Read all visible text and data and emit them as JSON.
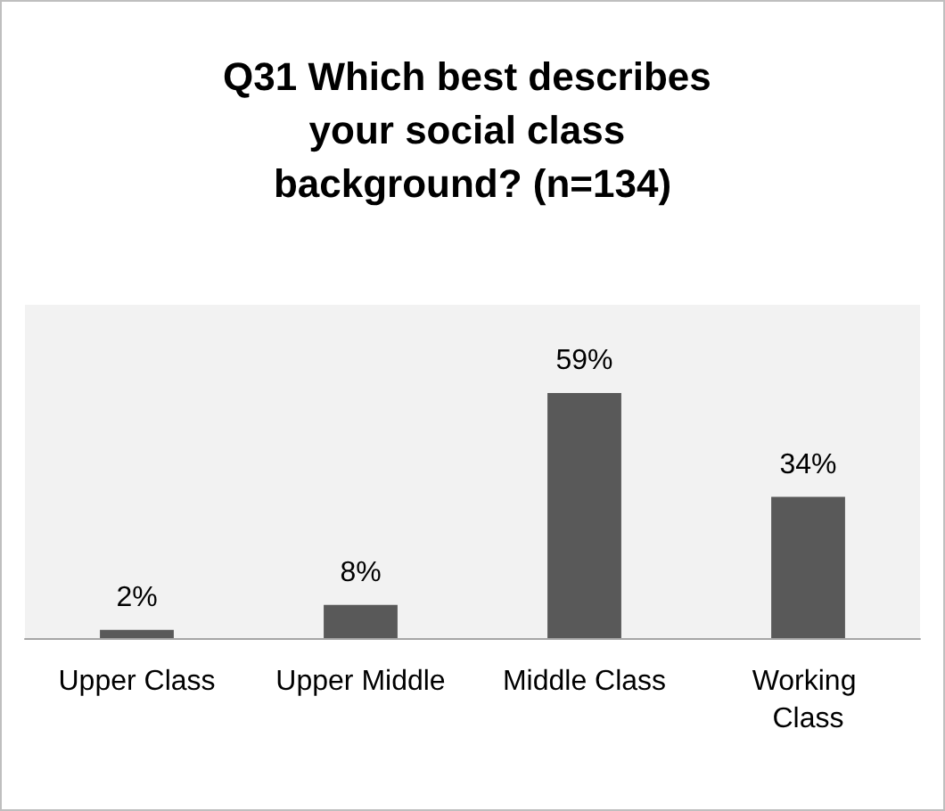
{
  "chart_data": {
    "type": "bar",
    "title": "Q31 Which best describes your social class background? (n=134)",
    "categories": [
      "Upper Class",
      "Upper Middle",
      "Middle Class",
      "Working Class"
    ],
    "values": [
      2,
      8,
      59,
      34
    ],
    "value_labels": [
      "2%",
      "8%",
      "59%",
      "34%"
    ],
    "color": "#595959",
    "grid": false
  }
}
